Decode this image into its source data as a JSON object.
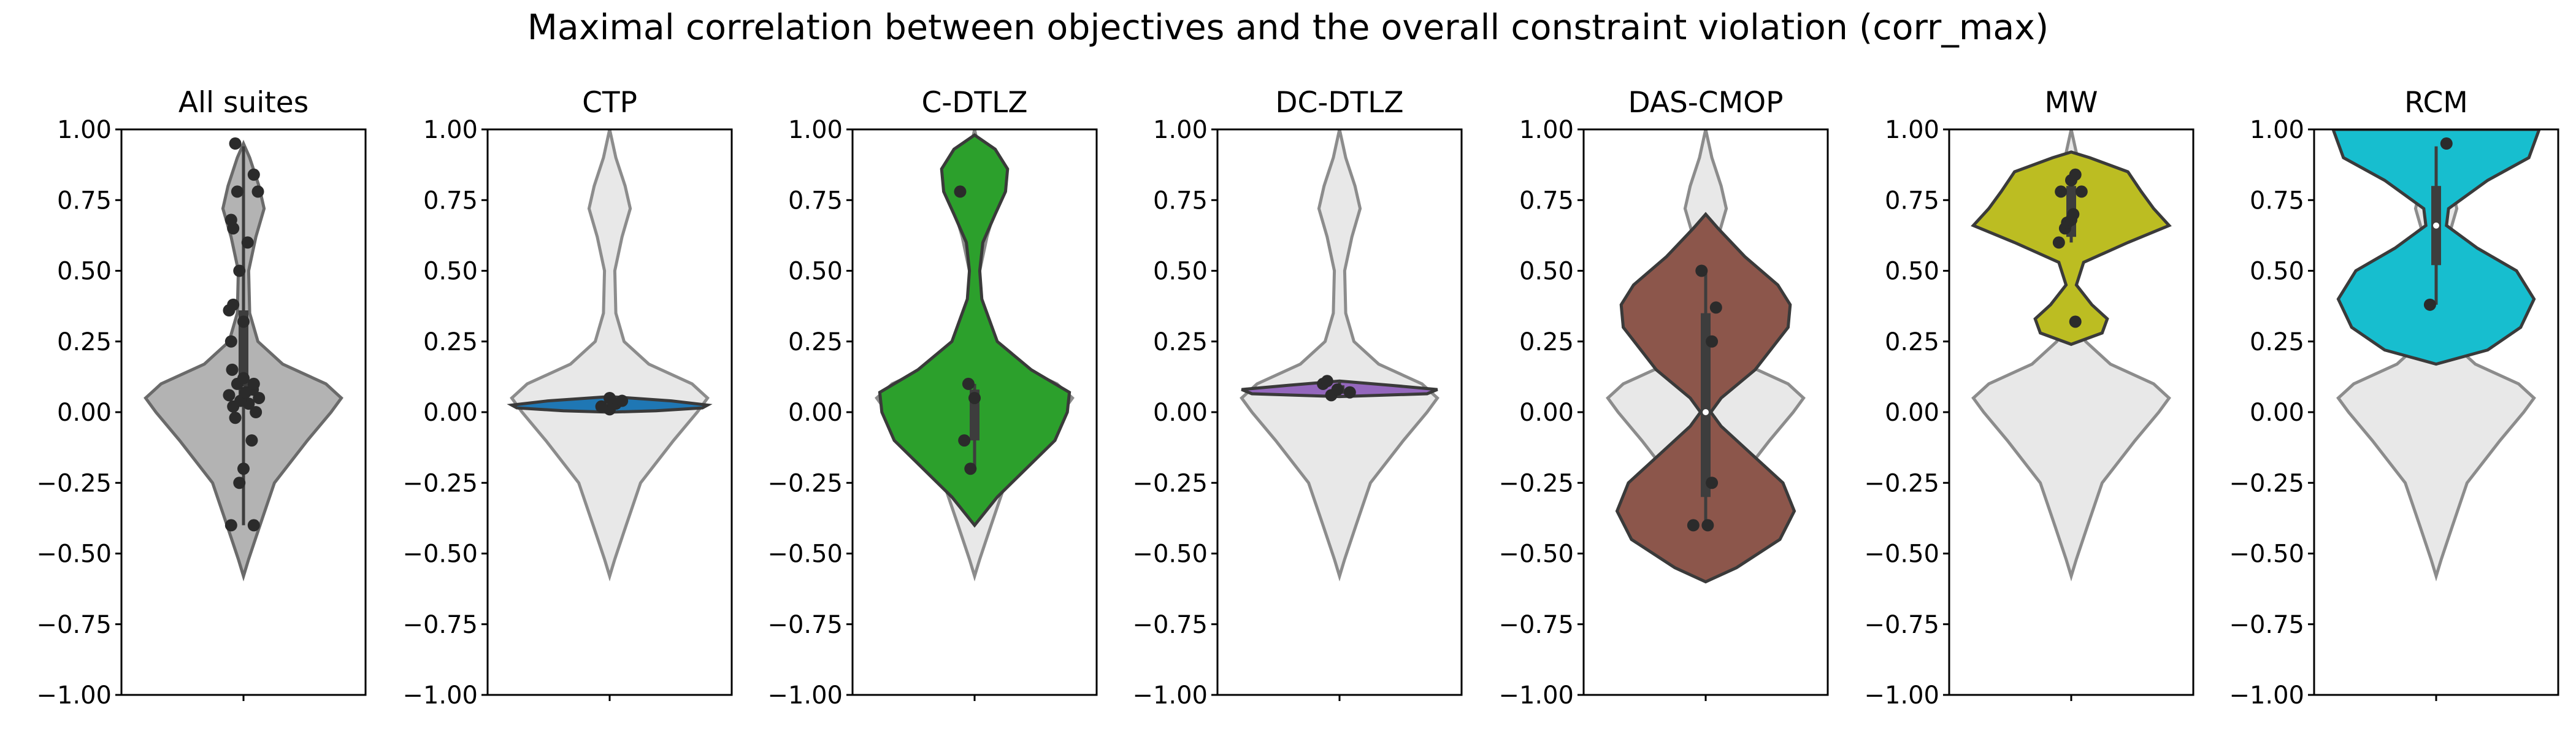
{
  "chart_data": {
    "type": "violin",
    "title": "Maximal correlation between objectives and the overall constraint violation (corr_max)",
    "ylim": [
      -1.0,
      1.0
    ],
    "yticks": [
      -1.0,
      -0.75,
      -0.5,
      -0.25,
      0.0,
      0.25,
      0.5,
      0.75,
      1.0
    ],
    "ytick_labels": [
      "−1.00",
      "−0.75",
      "−0.50",
      "−0.25",
      "0.00",
      "0.25",
      "0.50",
      "0.75",
      "1.00"
    ],
    "background_color": "#e8e8e8",
    "background_edge": "#8c8c8c",
    "background_profile": [
      [
        -0.58,
        0.0
      ],
      [
        -0.52,
        0.05
      ],
      [
        -0.4,
        0.16
      ],
      [
        -0.25,
        0.3
      ],
      [
        -0.1,
        0.62
      ],
      [
        0.0,
        0.85
      ],
      [
        0.05,
        0.95
      ],
      [
        0.1,
        0.8
      ],
      [
        0.17,
        0.38
      ],
      [
        0.25,
        0.14
      ],
      [
        0.35,
        0.06
      ],
      [
        0.5,
        0.05
      ],
      [
        0.62,
        0.12
      ],
      [
        0.72,
        0.2
      ],
      [
        0.8,
        0.15
      ],
      [
        0.9,
        0.06
      ],
      [
        1.0,
        0.0
      ]
    ],
    "panels": [
      {
        "title": "All suites",
        "fill": "#b3b3b3",
        "edge": "#6a6a6a",
        "show_background": false,
        "profile": [
          [
            -0.58,
            0.0
          ],
          [
            -0.52,
            0.05
          ],
          [
            -0.4,
            0.16
          ],
          [
            -0.25,
            0.3
          ],
          [
            -0.1,
            0.62
          ],
          [
            0.0,
            0.85
          ],
          [
            0.05,
            0.95
          ],
          [
            0.1,
            0.8
          ],
          [
            0.17,
            0.38
          ],
          [
            0.25,
            0.14
          ],
          [
            0.35,
            0.06
          ],
          [
            0.5,
            0.05
          ],
          [
            0.62,
            0.12
          ],
          [
            0.72,
            0.2
          ],
          [
            0.8,
            0.15
          ],
          [
            0.9,
            0.06
          ],
          [
            0.95,
            0.0
          ]
        ],
        "box": {
          "whisker_low": -0.4,
          "q1": 0.03,
          "median": 0.08,
          "q3": 0.36,
          "whisker_high": 0.94
        },
        "points": [
          [
            -0.4,
            -0.12
          ],
          [
            -0.4,
            0.1
          ],
          [
            -0.25,
            -0.04
          ],
          [
            -0.2,
            0.0
          ],
          [
            -0.1,
            0.08
          ],
          [
            -0.02,
            -0.08
          ],
          [
            0.0,
            0.12
          ],
          [
            0.02,
            -0.1
          ],
          [
            0.03,
            0.05
          ],
          [
            0.04,
            -0.03
          ],
          [
            0.05,
            0.15
          ],
          [
            0.06,
            -0.14
          ],
          [
            0.07,
            0.02
          ],
          [
            0.08,
            0.09
          ],
          [
            0.1,
            -0.06
          ],
          [
            0.1,
            0.1
          ],
          [
            0.12,
            0.0
          ],
          [
            0.15,
            -0.11
          ],
          [
            0.25,
            -0.12
          ],
          [
            0.32,
            0.0
          ],
          [
            0.36,
            -0.14
          ],
          [
            0.38,
            -0.1
          ],
          [
            0.5,
            -0.04
          ],
          [
            0.6,
            0.04
          ],
          [
            0.65,
            -0.1
          ],
          [
            0.68,
            -0.12
          ],
          [
            0.78,
            -0.06
          ],
          [
            0.78,
            0.14
          ],
          [
            0.84,
            0.1
          ],
          [
            0.95,
            -0.08
          ]
        ]
      },
      {
        "title": "CTP",
        "fill": "#1f77b4",
        "edge": "#3a3a3a",
        "show_background": true,
        "profile": [
          [
            0.0,
            0.0
          ],
          [
            0.005,
            0.45
          ],
          [
            0.015,
            0.9
          ],
          [
            0.025,
            0.95
          ],
          [
            0.04,
            0.6
          ],
          [
            0.055,
            0.0
          ]
        ],
        "box": {
          "whisker_low": 0.0,
          "q1": 0.015,
          "median": 0.025,
          "q3": 0.04,
          "whisker_high": 0.055
        },
        "points": [
          [
            0.01,
            0.0
          ],
          [
            0.02,
            -0.08
          ],
          [
            0.03,
            0.06
          ],
          [
            0.04,
            0.12
          ],
          [
            0.05,
            0.0
          ]
        ]
      },
      {
        "title": "C-DTLZ",
        "fill": "#2ca02c",
        "edge": "#3a3a3a",
        "show_background": true,
        "profile": [
          [
            -0.4,
            0.0
          ],
          [
            -0.3,
            0.22
          ],
          [
            -0.2,
            0.5
          ],
          [
            -0.1,
            0.78
          ],
          [
            0.0,
            0.9
          ],
          [
            0.07,
            0.92
          ],
          [
            0.15,
            0.55
          ],
          [
            0.25,
            0.22
          ],
          [
            0.4,
            0.07
          ],
          [
            0.5,
            0.05
          ],
          [
            0.6,
            0.08
          ],
          [
            0.7,
            0.2
          ],
          [
            0.78,
            0.3
          ],
          [
            0.86,
            0.32
          ],
          [
            0.93,
            0.2
          ],
          [
            0.98,
            0.0
          ]
        ],
        "box": {
          "whisker_low": -0.2,
          "q1": -0.1,
          "median": 0.05,
          "q3": 0.08,
          "whisker_high": 0.1
        },
        "points": [
          [
            -0.2,
            -0.04
          ],
          [
            -0.1,
            -0.1
          ],
          [
            0.05,
            0.0
          ],
          [
            0.1,
            -0.06
          ],
          [
            0.78,
            -0.14
          ]
        ]
      },
      {
        "title": "DC-DTLZ",
        "fill": "#9467bd",
        "edge": "#3a3a3a",
        "show_background": true,
        "profile": [
          [
            0.055,
            0.0
          ],
          [
            0.065,
            0.85
          ],
          [
            0.08,
            0.95
          ],
          [
            0.095,
            0.5
          ],
          [
            0.11,
            0.0
          ]
        ],
        "box": {
          "whisker_low": 0.055,
          "q1": 0.065,
          "median": 0.075,
          "q3": 0.095,
          "whisker_high": 0.11
        },
        "points": [
          [
            0.06,
            -0.08
          ],
          [
            0.07,
            0.1
          ],
          [
            0.08,
            -0.02
          ],
          [
            0.1,
            -0.16
          ],
          [
            0.11,
            -0.12
          ]
        ]
      },
      {
        "title": "DAS-CMOP",
        "fill": "#8c564b",
        "edge": "#3a3a3a",
        "show_background": true,
        "profile": [
          [
            -0.6,
            0.0
          ],
          [
            -0.55,
            0.3
          ],
          [
            -0.45,
            0.72
          ],
          [
            -0.35,
            0.86
          ],
          [
            -0.25,
            0.75
          ],
          [
            -0.15,
            0.45
          ],
          [
            -0.05,
            0.15
          ],
          [
            0.0,
            0.05
          ],
          [
            0.05,
            0.15
          ],
          [
            0.15,
            0.48
          ],
          [
            0.3,
            0.8
          ],
          [
            0.38,
            0.82
          ],
          [
            0.45,
            0.7
          ],
          [
            0.55,
            0.38
          ],
          [
            0.65,
            0.12
          ],
          [
            0.7,
            0.0
          ]
        ],
        "box": {
          "whisker_low": -0.4,
          "q1": -0.3,
          "median": 0.0,
          "q3": 0.35,
          "whisker_high": 0.5
        },
        "points": [
          [
            -0.4,
            -0.12
          ],
          [
            -0.4,
            0.02
          ],
          [
            -0.25,
            0.06
          ],
          [
            0.25,
            0.06
          ],
          [
            0.37,
            0.1
          ],
          [
            0.5,
            -0.04
          ]
        ]
      },
      {
        "title": "MW",
        "fill": "#bcbd22",
        "edge": "#3a3a3a",
        "show_background": true,
        "profile": [
          [
            0.24,
            0.0
          ],
          [
            0.28,
            0.3
          ],
          [
            0.33,
            0.35
          ],
          [
            0.38,
            0.2
          ],
          [
            0.45,
            0.05
          ],
          [
            0.53,
            0.12
          ],
          [
            0.6,
            0.55
          ],
          [
            0.66,
            0.95
          ],
          [
            0.72,
            0.8
          ],
          [
            0.78,
            0.68
          ],
          [
            0.85,
            0.55
          ],
          [
            0.9,
            0.18
          ],
          [
            0.92,
            0.0
          ]
        ],
        "box": {
          "whisker_low": 0.6,
          "q1": 0.62,
          "median": 0.69,
          "q3": 0.8,
          "whisker_high": 0.84
        },
        "points": [
          [
            0.32,
            0.04
          ],
          [
            0.6,
            -0.12
          ],
          [
            0.65,
            -0.06
          ],
          [
            0.67,
            -0.04
          ],
          [
            0.68,
            0.0
          ],
          [
            0.7,
            0.02
          ],
          [
            0.78,
            -0.1
          ],
          [
            0.78,
            0.1
          ],
          [
            0.82,
            0.0
          ],
          [
            0.84,
            0.04
          ]
        ]
      },
      {
        "title": "RCM",
        "fill": "#17becf",
        "edge": "#3a3a3a",
        "show_background": true,
        "profile": [
          [
            0.17,
            0.0
          ],
          [
            0.22,
            0.5
          ],
          [
            0.3,
            0.82
          ],
          [
            0.4,
            0.95
          ],
          [
            0.5,
            0.78
          ],
          [
            0.58,
            0.4
          ],
          [
            0.66,
            0.1
          ],
          [
            0.72,
            0.12
          ],
          [
            0.82,
            0.5
          ],
          [
            0.9,
            0.9
          ],
          [
            1.0,
            1.0
          ]
        ],
        "box": {
          "whisker_low": 0.38,
          "q1": 0.52,
          "median": 0.66,
          "q3": 0.8,
          "whisker_high": 0.94
        },
        "points": [
          [
            0.38,
            -0.06
          ],
          [
            0.95,
            0.1
          ]
        ]
      }
    ]
  }
}
